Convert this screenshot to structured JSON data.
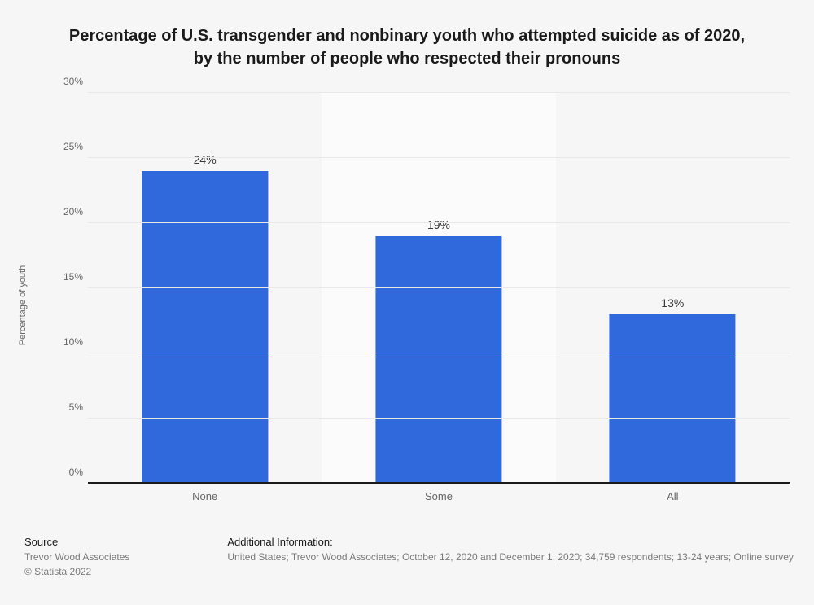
{
  "title": "Percentage of U.S. transgender and nonbinary youth who attempted suicide as of 2020, by the number of people who respected their pronouns",
  "title_fontsize": 20,
  "chart": {
    "type": "bar",
    "categories": [
      "None",
      "Some",
      "All"
    ],
    "values": [
      24,
      19,
      13
    ],
    "value_labels": [
      "24%",
      "19%",
      "13%"
    ],
    "bar_color": "#3069dc",
    "bar_width_pct": 54,
    "ylabel": "Percentage of youth",
    "ylabel_fontsize": 11,
    "ylim": [
      0,
      30
    ],
    "ytick_step": 5,
    "ytick_suffix": "%",
    "tick_fontsize": 12,
    "x_label_fontsize": 13,
    "bar_label_fontsize": 14,
    "background_color": "#f6f6f6",
    "alt_band_color": "#fbfbfb",
    "grid_color": "#e8e8e8",
    "axis_line_color": "#999999",
    "baseline_color": "#1a1a1a"
  },
  "footer": {
    "source_heading": "Source",
    "source_name": "Trevor Wood Associates",
    "copyright": "© Statista 2022",
    "info_heading": "Additional Information:",
    "info_text": "United States; Trevor Wood Associates; October 12, 2020 and December 1, 2020; 34,759 respondents; 13-24 years; Online survey",
    "heading_fontsize": 13,
    "text_fontsize": 12
  }
}
